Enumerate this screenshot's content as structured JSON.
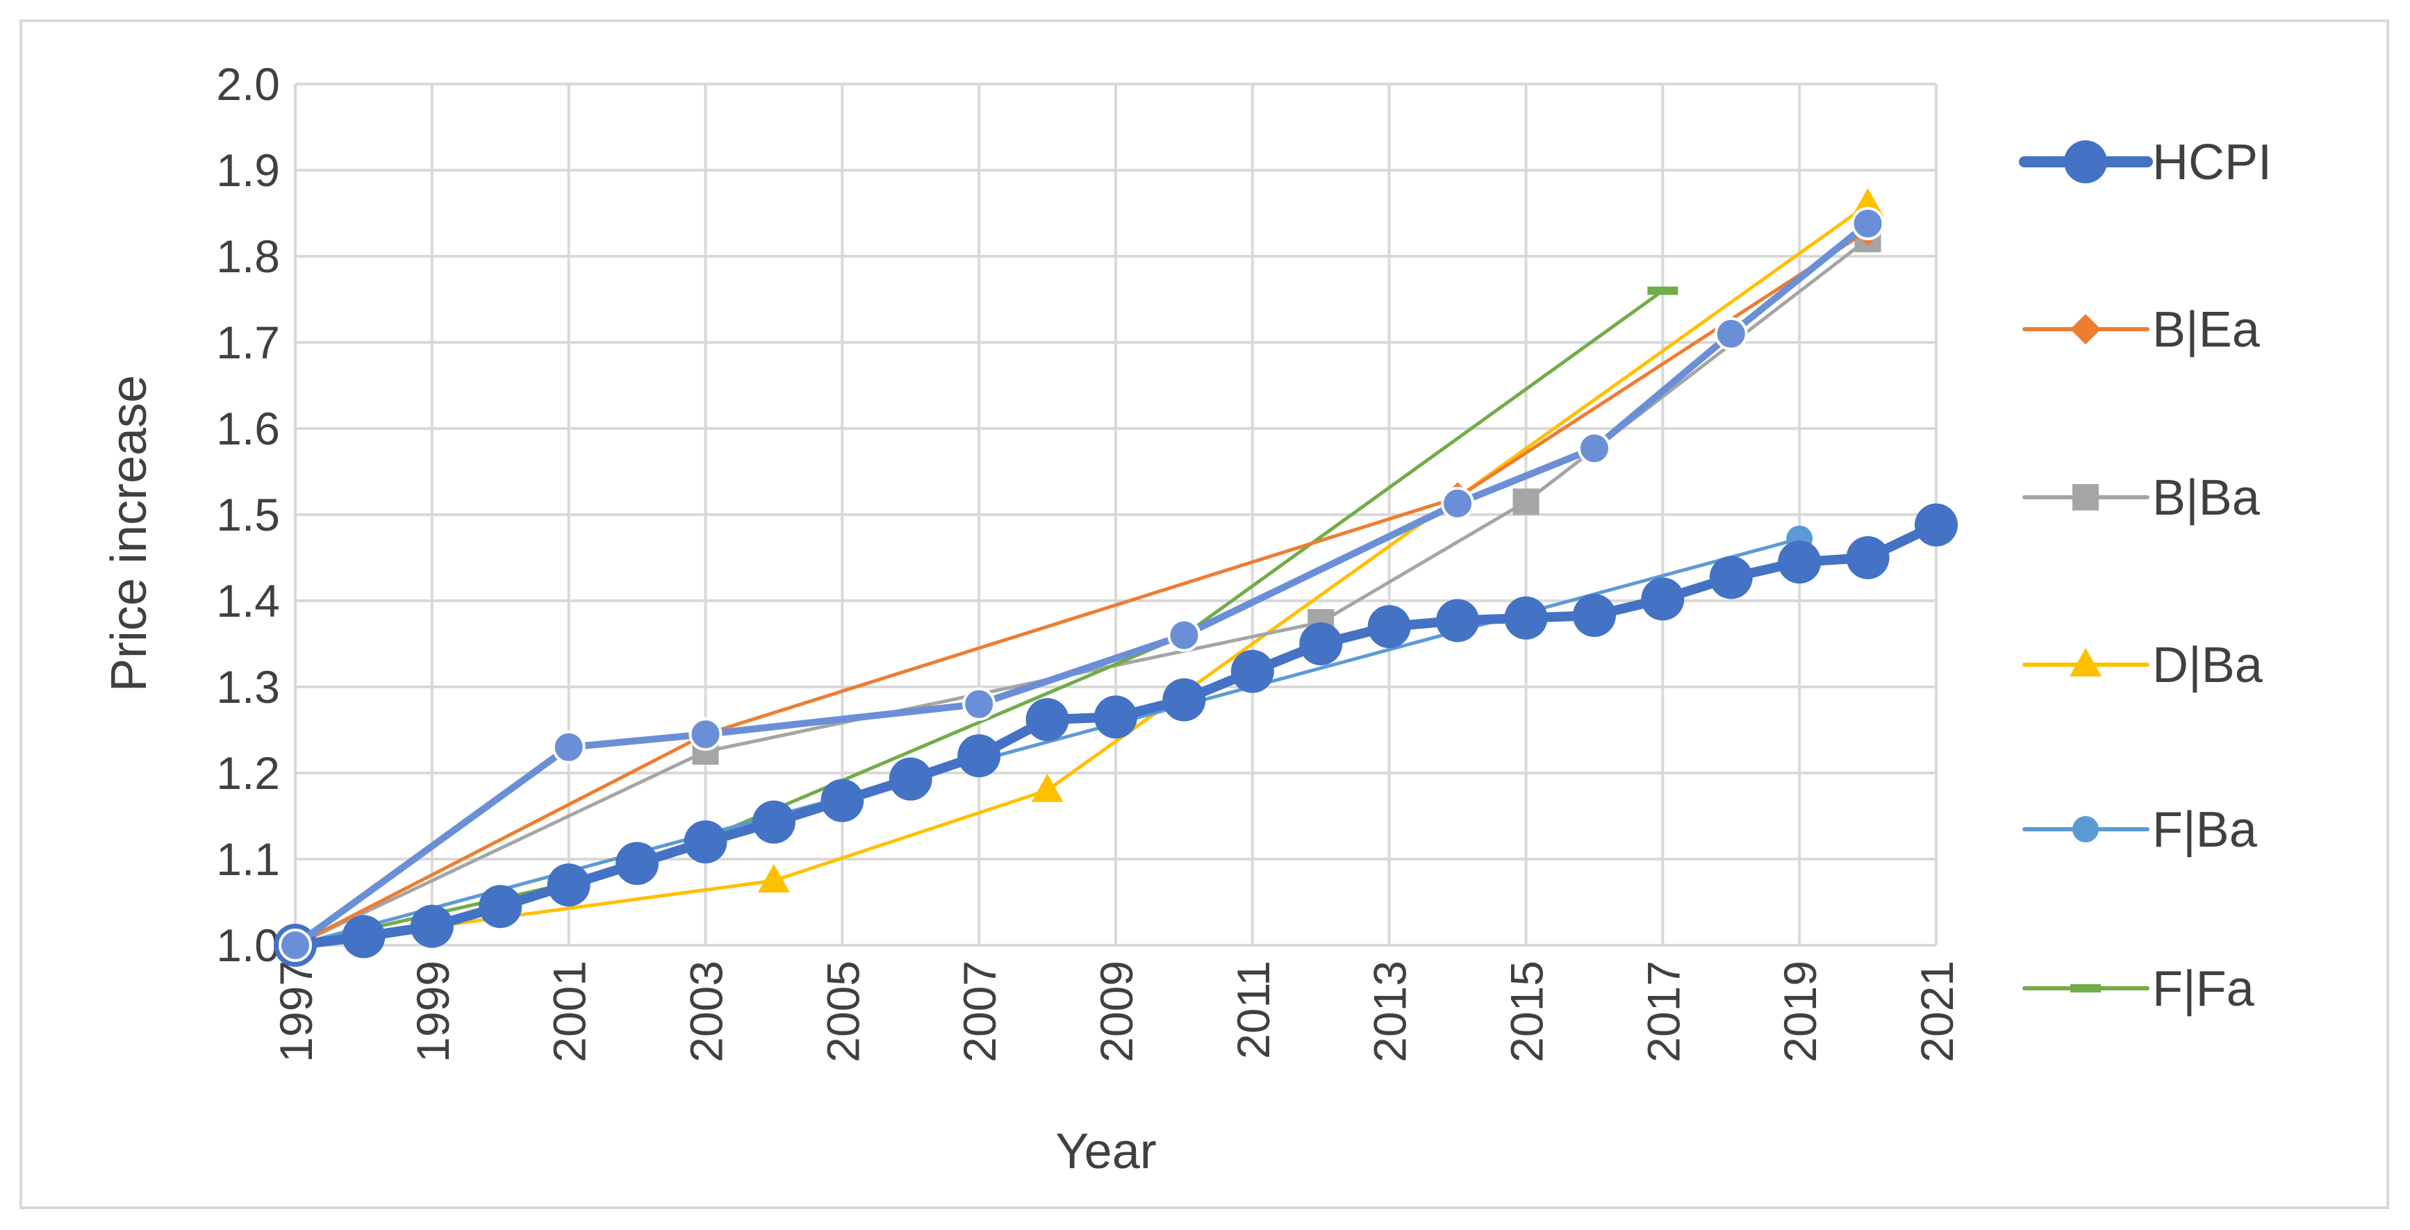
{
  "chart_data": {
    "type": "line",
    "title": "",
    "xlabel": "Year",
    "ylabel": "Price increase",
    "xlim": [
      1997,
      2021
    ],
    "ylim": [
      1.0,
      2.0
    ],
    "x_ticks": [
      "1997",
      "1999",
      "2001",
      "2003",
      "2005",
      "2007",
      "2009",
      "2011",
      "2013",
      "2015",
      "2017",
      "2019",
      "2021"
    ],
    "y_ticks": [
      "1.0",
      "1.1",
      "1.2",
      "1.3",
      "1.4",
      "1.5",
      "1.6",
      "1.7",
      "1.8",
      "1.9",
      "2.0"
    ],
    "grid": true,
    "legend_position": "right",
    "series": [
      {
        "name": "D|Ba",
        "color": "#ffc000",
        "marker": "triangle",
        "x": [
          1997,
          2004,
          2008,
          2020
        ],
        "y": [
          1.0,
          1.075,
          1.18,
          1.86
        ]
      },
      {
        "name": "B|Ba",
        "color": "#a5a5a5",
        "marker": "square",
        "x": [
          1997,
          2003,
          2012,
          2015,
          2020
        ],
        "y": [
          1.0,
          1.225,
          1.375,
          1.515,
          1.82
        ]
      },
      {
        "name": "F|Fa",
        "color": "#70ad47",
        "marker": "dash",
        "x": [
          1997,
          2002,
          2010,
          2017
        ],
        "y": [
          1.0,
          1.09,
          1.36,
          1.76
        ]
      },
      {
        "name": "F|Ba",
        "color": "#5b9bd5",
        "marker": "circle",
        "x": [
          1997,
          2019
        ],
        "y": [
          1.0,
          1.472
        ]
      },
      {
        "name": "B|Ea",
        "color": "#ed7d31",
        "marker": "diamond",
        "x": [
          1997,
          2003,
          2014,
          2020
        ],
        "y": [
          1.0,
          1.245,
          1.52,
          1.83
        ]
      },
      {
        "name": "HCPI",
        "color": "#4472c4",
        "marker": "circle-large",
        "x": [
          1997,
          1998,
          1999,
          2000,
          2001,
          2002,
          2003,
          2004,
          2005,
          2006,
          2007,
          2008,
          2009,
          2010,
          2011,
          2012,
          2013,
          2014,
          2015,
          2016,
          2017,
          2018,
          2019,
          2020,
          2021
        ],
        "y": [
          1.0,
          1.01,
          1.022,
          1.045,
          1.07,
          1.095,
          1.12,
          1.143,
          1.168,
          1.193,
          1.22,
          1.262,
          1.265,
          1.285,
          1.318,
          1.35,
          1.37,
          1.377,
          1.38,
          1.383,
          1.402,
          1.427,
          1.445,
          1.45,
          1.488
        ]
      },
      {
        "name": "",
        "color": "#6a8fd6",
        "marker": "circle-medium",
        "x": [
          1997,
          2001,
          2003,
          2007,
          2010,
          2014,
          2016,
          2018,
          2020
        ],
        "y": [
          1.0,
          1.23,
          1.245,
          1.28,
          1.36,
          1.513,
          1.577,
          1.71,
          1.838
        ]
      }
    ],
    "legend": [
      "HCPI",
      "B|Ea",
      "B|Ba",
      "D|Ba",
      "F|Ba",
      "F|Fa"
    ]
  }
}
